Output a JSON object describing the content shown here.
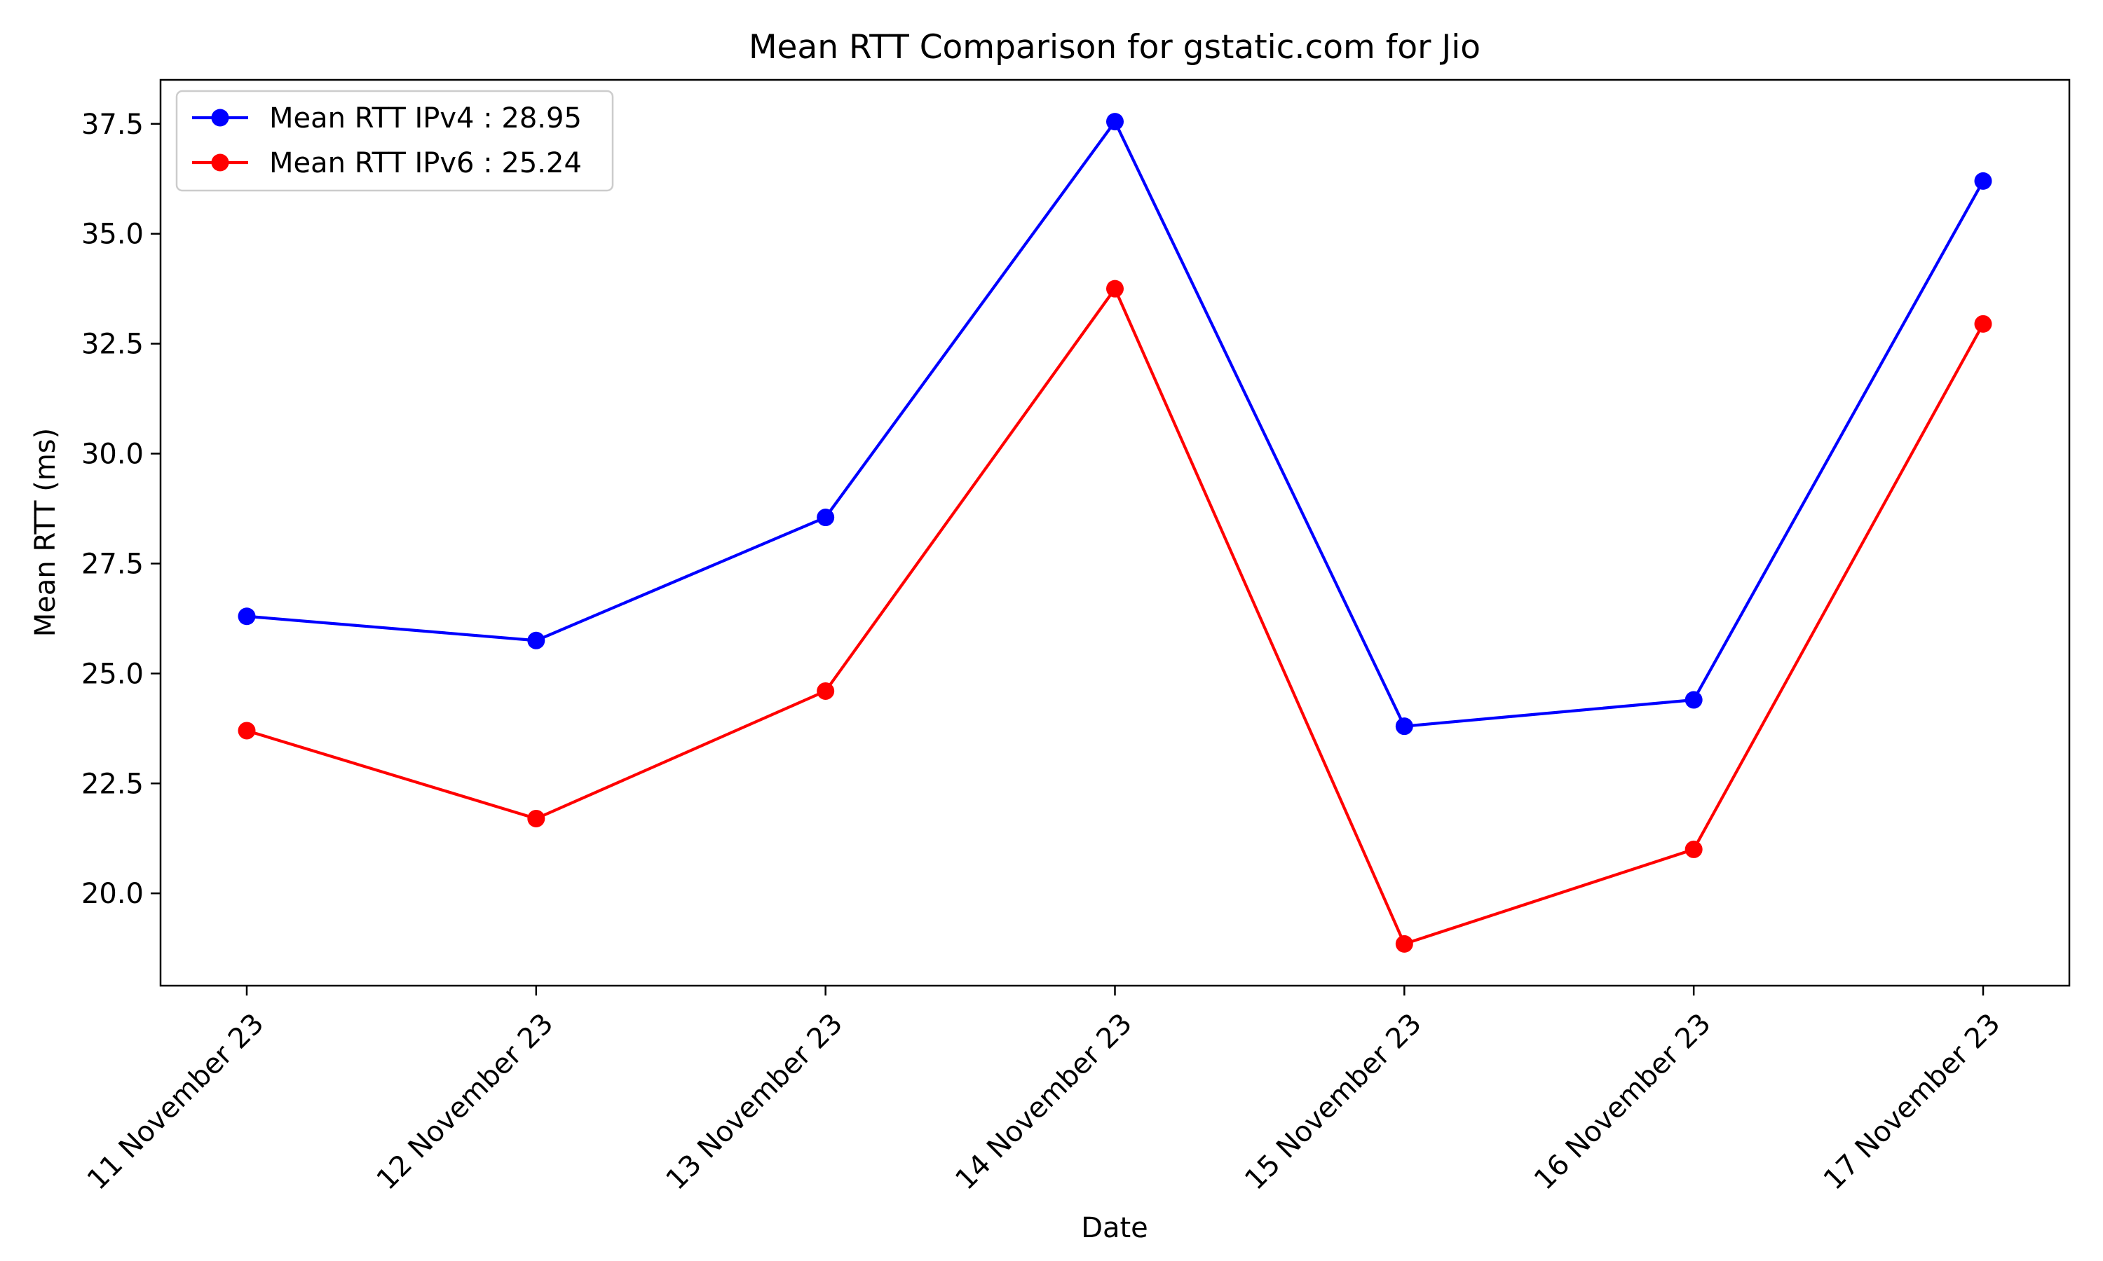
{
  "chart_data": {
    "type": "line",
    "title": "Mean RTT Comparison for gstatic.com for Jio",
    "xlabel": "Date",
    "ylabel": "Mean RTT (ms)",
    "categories": [
      "11 November 23",
      "12 November 23",
      "13 November 23",
      "14 November 23",
      "15 November 23",
      "16 November 23",
      "17 November 23"
    ],
    "ylim": [
      17.9,
      38.5
    ],
    "yticks": [
      20.0,
      22.5,
      25.0,
      27.5,
      30.0,
      32.5,
      35.0,
      37.5
    ],
    "ytick_labels": [
      "20.0",
      "22.5",
      "25.0",
      "27.5",
      "30.0",
      "32.5",
      "35.0",
      "37.5"
    ],
    "grid": false,
    "legend_position": "top-left",
    "series": [
      {
        "name": "Mean RTT IPv4 : 28.95",
        "color": "#0000ff",
        "marker": "circle",
        "values": [
          26.3,
          25.75,
          28.55,
          37.55,
          23.8,
          24.4,
          36.2
        ]
      },
      {
        "name": "Mean RTT IPv6 : 25.24",
        "color": "#ff0000",
        "marker": "circle",
        "values": [
          23.7,
          21.7,
          24.6,
          33.75,
          18.85,
          21.0,
          32.95
        ]
      }
    ]
  }
}
